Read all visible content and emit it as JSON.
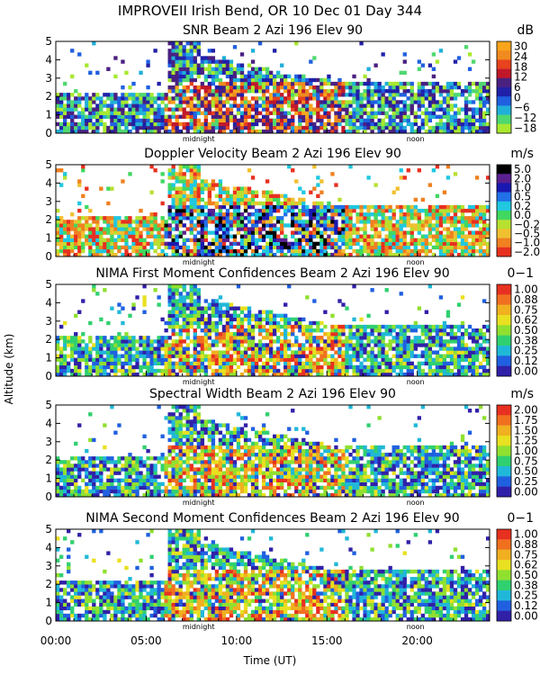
{
  "figure": {
    "title": "IMPROVEII  Irish Bend, OR  10 Dec 01 Day 344",
    "ylabel": "Altitude (km)",
    "xlabel": "Time (UT)",
    "xticks": [
      "00:00",
      "05:00",
      "10:00",
      "15:00",
      "20:00"
    ],
    "midnight_label": "midnight",
    "noon_label": "noon"
  },
  "chart_data": [
    {
      "type": "heatmap",
      "title": "SNR Beam 2 Azi 196 Elev 90",
      "unit": "dB",
      "xlim": [
        0,
        24
      ],
      "ylim": [
        0,
        5
      ],
      "yticks": [
        0,
        1,
        2,
        3,
        4,
        5
      ],
      "colorbar_labels": [
        "30",
        "24",
        "18",
        "12",
        "6",
        "0",
        "−6",
        "−12",
        "−18"
      ],
      "colors": [
        "#f9a51c",
        "#f08a1e",
        "#e8421e",
        "#c0182a",
        "#4a2080",
        "#2020a8",
        "#2060e0",
        "#20b0d8",
        "#50d870",
        "#a8e830"
      ],
      "markers": {
        "midnight_hour": 7.9,
        "noon_hour": 19.9
      }
    },
    {
      "type": "heatmap",
      "title": "Doppler Velocity Beam 2 Azi 196 Elev 90",
      "unit": "m/s",
      "xlim": [
        0,
        24
      ],
      "ylim": [
        0,
        5
      ],
      "yticks": [
        0,
        1,
        2,
        3,
        4,
        5
      ],
      "colorbar_labels": [
        "5.0",
        "2.0",
        "1.0",
        "0.5",
        "0.2",
        "0.0",
        "−0.2",
        "−0.5",
        "−1.0",
        "−2.0"
      ],
      "colors": [
        "#000000",
        "#5a2090",
        "#1818b0",
        "#2070e8",
        "#20c8e0",
        "#40d860",
        "#b8e030",
        "#f0c030",
        "#f08020",
        "#e83020"
      ],
      "markers": {
        "midnight_hour": 7.9,
        "noon_hour": 19.9
      }
    },
    {
      "type": "heatmap",
      "title": "NIMA First Moment Confidences Beam 2 Azi 196 Elev 90",
      "unit": "0−1",
      "xlim": [
        0,
        24
      ],
      "ylim": [
        0,
        5
      ],
      "yticks": [
        0,
        1,
        2,
        3,
        4,
        5
      ],
      "colorbar_labels": [
        "1.00",
        "0.88",
        "0.75",
        "0.62",
        "0.50",
        "0.38",
        "0.25",
        "0.12",
        "0.00"
      ],
      "colors": [
        "#e83020",
        "#f07020",
        "#f0b020",
        "#e8e020",
        "#90e030",
        "#30d070",
        "#20b8d8",
        "#2060e0",
        "#3020a8"
      ],
      "markers": {
        "midnight_hour": 7.9,
        "noon_hour": 19.9
      }
    },
    {
      "type": "heatmap",
      "title": "Spectral Width Beam 2 Azi 196 Elev 90",
      "unit": "m/s",
      "xlim": [
        0,
        24
      ],
      "ylim": [
        0,
        5
      ],
      "yticks": [
        0,
        1,
        2,
        3,
        4,
        5
      ],
      "colorbar_labels": [
        "2.00",
        "1.75",
        "1.50",
        "1.25",
        "1.00",
        "0.75",
        "0.50",
        "0.25",
        "0.00"
      ],
      "colors": [
        "#e83020",
        "#f07020",
        "#f0b020",
        "#e8e020",
        "#90e030",
        "#30d070",
        "#20b8d8",
        "#2060e0",
        "#3020a8"
      ],
      "markers": {
        "midnight_hour": 7.9,
        "noon_hour": 19.9
      }
    },
    {
      "type": "heatmap",
      "title": "NIMA Second Moment Confidences Beam 2 Azi 196 Elev 90",
      "unit": "0−1",
      "xlim": [
        0,
        24
      ],
      "ylim": [
        0,
        5
      ],
      "yticks": [
        0,
        1,
        2,
        3,
        4,
        5
      ],
      "colorbar_labels": [
        "1.00",
        "0.88",
        "0.75",
        "0.62",
        "0.50",
        "0.38",
        "0.25",
        "0.12",
        "0.00"
      ],
      "colors": [
        "#e83020",
        "#f07020",
        "#f0b020",
        "#e8e020",
        "#90e030",
        "#30d070",
        "#20b8d8",
        "#2060e0",
        "#3020a8"
      ],
      "markers": {
        "midnight_hour": 7.9,
        "noon_hour": 19.9
      }
    }
  ]
}
